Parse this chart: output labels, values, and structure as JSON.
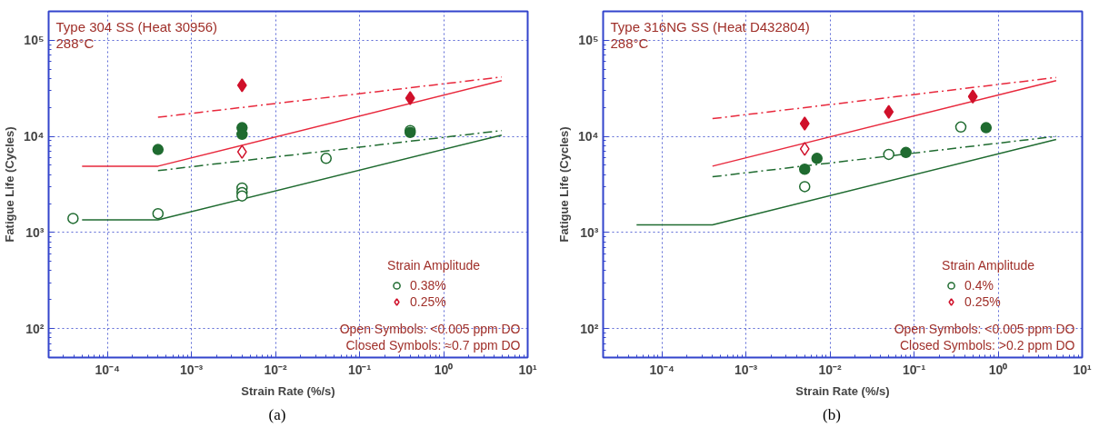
{
  "chart_data": [
    {
      "type": "scatter",
      "title": "Type 304 SS (Heat 30956)",
      "subtitle": "288°C",
      "xlabel": "Strain Rate (%/s)",
      "ylabel": "Fatigue Life (Cycles)",
      "legend_title": "Strain Amplitude",
      "log": "xy",
      "xlim": [
        2e-05,
        10
      ],
      "ylim": [
        50,
        200000
      ],
      "xticks": [
        {
          "value": 0.0001,
          "label": "10⁻⁴"
        },
        {
          "value": 0.001,
          "label": "10⁻³"
        },
        {
          "value": 0.01,
          "label": "10⁻²"
        },
        {
          "value": 0.1,
          "label": "10⁻¹"
        },
        {
          "value": 1,
          "label": "10⁰"
        },
        {
          "value": 10,
          "label": "10¹"
        }
      ],
      "yticks": [
        {
          "value": 100,
          "label": "10²"
        },
        {
          "value": 1000,
          "label": "10³"
        },
        {
          "value": 10000,
          "label": "10⁴"
        },
        {
          "value": 100000,
          "label": "10⁵"
        }
      ],
      "grid": true,
      "legend": "bottom right",
      "series": [
        {
          "type": "line",
          "color": "#e8283c",
          "line_style": "solid",
          "x": [
            5e-05,
            0.0004,
            4.9
          ],
          "values": [
            4900,
            4900,
            38000
          ]
        },
        {
          "type": "line",
          "color": "#e8283c",
          "line_style": "dashed",
          "x": [
            0.0004,
            4.9
          ],
          "values": [
            15800,
            41500
          ]
        },
        {
          "type": "line",
          "color": "#1f6b30",
          "line_style": "solid",
          "x": [
            5e-05,
            0.0004,
            4.9
          ],
          "values": [
            1350,
            1350,
            10300
          ]
        },
        {
          "type": "line",
          "color": "#1f6b30",
          "line_style": "dashed",
          "x": [
            0.0004,
            4.9
          ],
          "values": [
            4400,
            11500
          ]
        },
        {
          "name": "0.38%",
          "color": "#1f6b30",
          "marker": "circle",
          "x": [
            3.9e-05,
            0.0004,
            0.004,
            0.004,
            0.004,
            0.04,
            0.4
          ],
          "values": [
            1400,
            1570,
            2900,
            2600,
            2400,
            5900,
            11500
          ]
        },
        {
          "name": "0.25%",
          "color": "#d0102a",
          "marker": "diamond",
          "x": [
            0.004
          ],
          "values": [
            6900
          ]
        },
        {
          "color": "#1f6b30",
          "marker": "circle",
          "x": [
            0.0004,
            0.004,
            0.004,
            0.4
          ],
          "values": [
            7300,
            12300,
            10500,
            11000
          ]
        },
        {
          "color": "#d0102a",
          "marker": "diamond",
          "x": [
            0.004,
            0.4
          ],
          "values": [
            34000,
            25000
          ]
        }
      ],
      "annotations": [
        "Open Symbols: <0.005 ppm DO",
        "Closed Symbols: ≈0.7 ppm DO",
        "(a)"
      ]
    },
    {
      "type": "scatter",
      "title": "Type 316NG SS (Heat D432804)",
      "subtitle": "288°C",
      "xlabel": "Strain Rate (%/s)",
      "ylabel": "Fatigue Life (Cycles)",
      "legend_title": "Strain Amplitude",
      "log": "xy",
      "xlim": [
        2e-05,
        10
      ],
      "ylim": [
        50,
        200000
      ],
      "xticks": [
        {
          "value": 0.0001,
          "label": "10⁻⁴"
        },
        {
          "value": 0.001,
          "label": "10⁻³"
        },
        {
          "value": 0.01,
          "label": "10⁻²"
        },
        {
          "value": 0.1,
          "label": "10⁻¹"
        },
        {
          "value": 1,
          "label": "10⁰"
        },
        {
          "value": 10,
          "label": "10¹"
        }
      ],
      "yticks": [
        {
          "value": 100,
          "label": "10²"
        },
        {
          "value": 1000,
          "label": "10³"
        },
        {
          "value": 10000,
          "label": "10⁴"
        },
        {
          "value": 100000,
          "label": "10⁵"
        }
      ],
      "grid": true,
      "legend": "bottom right",
      "series": [
        {
          "type": "line",
          "color": "#e8283c",
          "line_style": "solid",
          "x": [
            0.0004,
            4.9
          ],
          "values": [
            4900,
            38000
          ]
        },
        {
          "type": "line",
          "color": "#e8283c",
          "line_style": "dashed",
          "x": [
            0.0004,
            4.9
          ],
          "values": [
            15300,
            41000
          ]
        },
        {
          "type": "line",
          "color": "#1f6b30",
          "line_style": "solid",
          "x": [
            5e-05,
            0.0004,
            4.9
          ],
          "values": [
            1200,
            1200,
            9300
          ]
        },
        {
          "type": "line",
          "color": "#1f6b30",
          "line_style": "dashed",
          "x": [
            0.0004,
            4.9
          ],
          "values": [
            3800,
            10000
          ]
        },
        {
          "name": "0.4%",
          "color": "#1f6b30",
          "marker": "circle",
          "x": [
            0.005,
            0.05,
            0.36
          ],
          "values": [
            3000,
            6500,
            12500
          ]
        },
        {
          "name": "0.25%",
          "color": "#d0102a",
          "marker": "diamond",
          "x": [
            0.005
          ],
          "values": [
            7400
          ]
        },
        {
          "color": "#1f6b30",
          "marker": "circle",
          "x": [
            0.005,
            0.007,
            0.08,
            0.72
          ],
          "values": [
            4550,
            5900,
            6800,
            12300
          ]
        },
        {
          "color": "#d0102a",
          "marker": "diamond",
          "x": [
            0.005,
            0.05,
            0.5
          ],
          "values": [
            13600,
            18000,
            26000
          ]
        }
      ],
      "annotations": [
        "Open Symbols: <0.005 ppm DO",
        "Closed Symbols: >0.2 ppm DO",
        "(b)"
      ]
    }
  ]
}
